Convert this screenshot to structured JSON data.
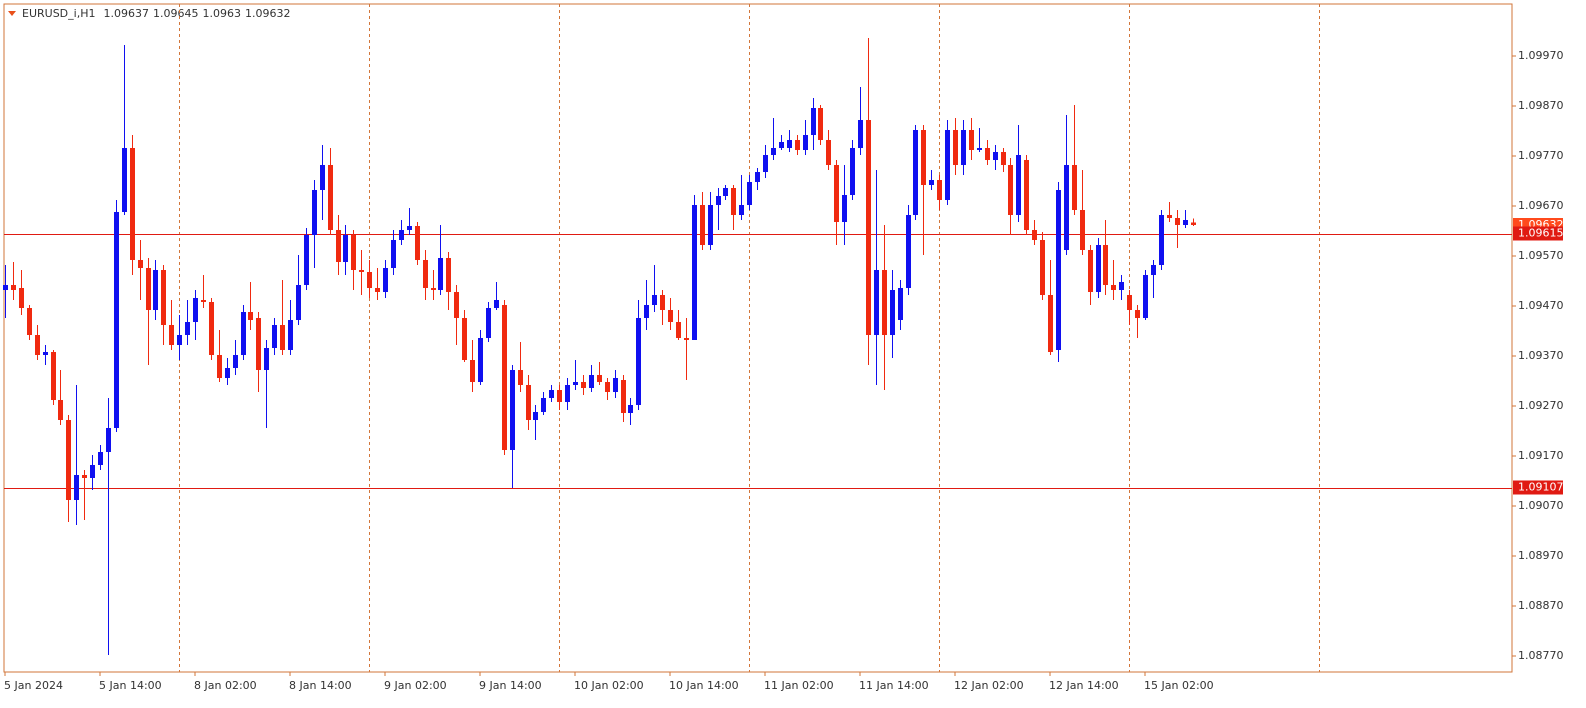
{
  "chart_data": {
    "type": "candlestick",
    "title": "EURUSD_i,H1",
    "up_color": "#1010f0",
    "down_color": "#f02a10",
    "grid": true,
    "categories": [
      "5 Jan 2024",
      null,
      null,
      null,
      null,
      null,
      null,
      null,
      null,
      null,
      null,
      null,
      "5 Jan 14:00",
      null,
      null,
      null,
      null,
      null,
      null,
      null,
      null,
      null,
      null,
      null,
      "8 Jan 02:00",
      null,
      null,
      null,
      null,
      null,
      null,
      null,
      null,
      null,
      null,
      null,
      "8 Jan 14:00",
      null,
      null,
      null,
      null,
      null,
      null,
      null,
      null,
      null,
      null,
      null,
      "9 Jan 02:00",
      null,
      null,
      null,
      null,
      null,
      null,
      null,
      null,
      null,
      null,
      null,
      "9 Jan 14:00",
      null,
      null,
      null,
      null,
      null,
      null,
      null,
      null,
      null,
      null,
      null,
      "10 Jan 02:00",
      null,
      null,
      null,
      null,
      null,
      null,
      null,
      null,
      null,
      null,
      null,
      "10 Jan 14:00",
      null,
      null,
      null,
      null,
      null,
      null,
      null,
      null,
      null,
      null,
      null,
      "11 Jan 02:00",
      null,
      null,
      null,
      null,
      null,
      null,
      null,
      null,
      null,
      null,
      null,
      "11 Jan 14:00",
      null,
      null,
      null,
      null,
      null,
      null,
      null,
      null,
      null,
      null,
      null,
      "12 Jan 02:00",
      null,
      null,
      null,
      null,
      null,
      null,
      null,
      null,
      null,
      null,
      null,
      "12 Jan 14:00",
      null,
      null,
      null,
      null,
      null,
      null,
      null,
      null,
      null,
      null,
      null,
      "15 Jan 02:00",
      null,
      null,
      null,
      null,
      null,
      null
    ],
    "open": [
      1.09502,
      1.09512,
      1.09506,
      1.09466,
      1.09412,
      1.09372,
      1.09378,
      1.09282,
      1.09242,
      1.09082,
      1.09132,
      1.09126,
      1.09152,
      1.09178,
      1.09226,
      1.09658,
      1.09786,
      1.09562,
      1.09546,
      1.09462,
      1.09542,
      1.09432,
      1.09392,
      1.09412,
      1.09438,
      1.09482,
      1.09478,
      1.09372,
      1.09326,
      1.09346,
      1.09372,
      1.09458,
      1.09446,
      1.09342,
      1.09386,
      1.09432,
      1.09382,
      1.09442,
      1.09512,
      1.09612,
      1.09702,
      1.09752,
      1.09622,
      1.09558,
      1.09612,
      1.09542,
      1.09538,
      1.09506,
      1.09498,
      1.09546,
      1.09602,
      1.09622,
      1.0963,
      1.09562,
      1.09506,
      1.09502,
      1.09566,
      1.09498,
      1.09446,
      1.09362,
      1.09318,
      1.09406,
      1.09466,
      1.09472,
      1.09182,
      1.09342,
      1.09312,
      1.09242,
      1.09258,
      1.09286,
      1.09302,
      1.09278,
      1.09312,
      1.09318,
      1.09306,
      1.09332,
      1.09318,
      1.09298,
      1.09322,
      1.09256,
      1.09272,
      1.09446,
      1.09472,
      1.09492,
      1.09462,
      1.09438,
      1.09406,
      1.09402,
      1.09672,
      1.09592,
      1.09672,
      1.0969,
      1.09706,
      1.09652,
      1.09672,
      1.09718,
      1.09738,
      1.09772,
      1.09786,
      1.09786,
      1.09802,
      1.09782,
      1.09812,
      1.09866,
      1.09802,
      1.09752,
      1.09638,
      1.09692,
      1.09786,
      1.09842,
      1.09412,
      1.09542,
      1.09412,
      1.09442,
      1.09506,
      1.09652,
      1.09822,
      1.09712,
      1.09722,
      1.09682,
      1.09822,
      1.09752,
      1.09822,
      1.09782,
      1.09786,
      1.09762,
      1.09778,
      1.09752,
      1.09652,
      1.09762,
      1.09622,
      1.09602,
      1.09492,
      1.09382,
      1.09582,
      1.09752,
      1.09662,
      1.09582,
      1.09498,
      1.09592,
      1.09512,
      1.09502,
      1.09492,
      1.09462,
      1.09446,
      1.09532,
      1.09552,
      1.09652,
      1.09646,
      1.09632,
      1.09637
    ],
    "high": [
      1.09552,
      1.09558,
      1.09542,
      1.09472,
      1.09432,
      1.09392,
      1.09382,
      1.09342,
      1.09252,
      1.09312,
      1.09142,
      1.09172,
      1.09192,
      1.09286,
      1.09682,
      1.09992,
      1.09812,
      1.09602,
      1.09566,
      1.09562,
      1.09552,
      1.09482,
      1.09452,
      1.09482,
      1.09502,
      1.09532,
      1.09486,
      1.09422,
      1.09366,
      1.09402,
      1.09472,
      1.09518,
      1.09458,
      1.09402,
      1.09446,
      1.09522,
      1.09482,
      1.09572,
      1.09626,
      1.09722,
      1.09792,
      1.09786,
      1.09652,
      1.09632,
      1.09622,
      1.09582,
      1.09562,
      1.09546,
      1.09562,
      1.09622,
      1.09642,
      1.09666,
      1.09638,
      1.09582,
      1.09542,
      1.09632,
      1.09578,
      1.09512,
      1.09462,
      1.09402,
      1.09422,
      1.09478,
      1.09518,
      1.09482,
      1.09352,
      1.09398,
      1.09332,
      1.09272,
      1.09298,
      1.09312,
      1.09312,
      1.09326,
      1.09362,
      1.09332,
      1.09352,
      1.09358,
      1.09326,
      1.09342,
      1.09332,
      1.09286,
      1.09482,
      1.09522,
      1.09552,
      1.09502,
      1.09486,
      1.09462,
      1.09446,
      1.09692,
      1.09698,
      1.09698,
      1.09706,
      1.09712,
      1.09712,
      1.09732,
      1.09732,
      1.09746,
      1.09792,
      1.09846,
      1.09812,
      1.09822,
      1.09812,
      1.09842,
      1.09886,
      1.09872,
      1.09822,
      1.09762,
      1.09752,
      1.09802,
      1.09908,
      1.10006,
      1.09742,
      1.09632,
      1.09542,
      1.09522,
      1.09672,
      1.09832,
      1.09832,
      1.09742,
      1.09732,
      1.09842,
      1.09846,
      1.09842,
      1.09846,
      1.09826,
      1.09802,
      1.09792,
      1.09786,
      1.09766,
      1.09832,
      1.09772,
      1.09642,
      1.09618,
      1.09562,
      1.09718,
      1.09852,
      1.09872,
      1.09742,
      1.09592,
      1.09606,
      1.09642,
      1.09562,
      1.09532,
      1.09502,
      1.09472,
      1.09542,
      1.09562,
      1.09662,
      1.09678,
      1.09662,
      1.09662,
      1.09645
    ],
    "low": [
      1.09446,
      1.09482,
      1.09452,
      1.09402,
      1.09362,
      1.09352,
      1.09272,
      1.09232,
      1.09038,
      1.09032,
      1.09042,
      1.09102,
      1.09142,
      1.08772,
      1.09218,
      1.09652,
      1.09532,
      1.09482,
      1.09352,
      1.09442,
      1.09392,
      1.09382,
      1.09362,
      1.09392,
      1.09402,
      1.09466,
      1.09362,
      1.09318,
      1.09312,
      1.09332,
      1.09362,
      1.09422,
      1.09298,
      1.09226,
      1.09372,
      1.09372,
      1.09372,
      1.09432,
      1.09502,
      1.09546,
      1.09642,
      1.09612,
      1.09532,
      1.09532,
      1.09502,
      1.09492,
      1.09486,
      1.09482,
      1.09486,
      1.09532,
      1.09592,
      1.09612,
      1.09552,
      1.09482,
      1.09482,
      1.09492,
      1.09462,
      1.09392,
      1.09358,
      1.09298,
      1.09312,
      1.09398,
      1.09462,
      1.09172,
      1.09106,
      1.09298,
      1.09222,
      1.09202,
      1.09252,
      1.09278,
      1.09262,
      1.09262,
      1.09302,
      1.09292,
      1.09298,
      1.09312,
      1.09282,
      1.09286,
      1.09238,
      1.09232,
      1.09262,
      1.09422,
      1.09458,
      1.09432,
      1.09422,
      1.09402,
      1.09322,
      1.09402,
      1.09582,
      1.09582,
      1.09622,
      1.09682,
      1.09622,
      1.09642,
      1.09662,
      1.09702,
      1.09726,
      1.09762,
      1.09782,
      1.09778,
      1.09772,
      1.09772,
      1.09782,
      1.09792,
      1.09742,
      1.09592,
      1.09592,
      1.09682,
      1.09772,
      1.09352,
      1.09312,
      1.09302,
      1.09366,
      1.09422,
      1.09492,
      1.09642,
      1.09572,
      1.09702,
      1.09662,
      1.09672,
      1.09732,
      1.09732,
      1.09762,
      1.09778,
      1.09752,
      1.09742,
      1.09738,
      1.09612,
      1.09638,
      1.09612,
      1.09592,
      1.09482,
      1.09372,
      1.09358,
      1.09572,
      1.09652,
      1.09572,
      1.09472,
      1.09486,
      1.09492,
      1.09482,
      1.09482,
      1.09432,
      1.09406,
      1.09442,
      1.09486,
      1.09542,
      1.09638,
      1.09586,
      1.09626,
      1.0963
    ],
    "close": [
      1.09512,
      1.09502,
      1.09466,
      1.09412,
      1.09372,
      1.09378,
      1.09282,
      1.09242,
      1.09082,
      1.09132,
      1.09126,
      1.09152,
      1.09178,
      1.09226,
      1.09658,
      1.09786,
      1.09562,
      1.09546,
      1.09462,
      1.09542,
      1.09432,
      1.09392,
      1.09412,
      1.09438,
      1.09486,
      1.09478,
      1.09372,
      1.09326,
      1.09346,
      1.09372,
      1.09458,
      1.09442,
      1.09342,
      1.09386,
      1.09432,
      1.09382,
      1.09442,
      1.09512,
      1.09612,
      1.09702,
      1.09752,
      1.09622,
      1.09558,
      1.09612,
      1.09542,
      1.09538,
      1.09506,
      1.09498,
      1.09546,
      1.09602,
      1.09622,
      1.0963,
      1.09562,
      1.09506,
      1.09502,
      1.09566,
      1.09498,
      1.09446,
      1.09362,
      1.09318,
      1.09406,
      1.09466,
      1.09482,
      1.09182,
      1.09342,
      1.09312,
      1.09242,
      1.09258,
      1.09286,
      1.09302,
      1.09278,
      1.09312,
      1.09318,
      1.09306,
      1.09332,
      1.09318,
      1.09298,
      1.09326,
      1.09256,
      1.09272,
      1.09446,
      1.09472,
      1.09492,
      1.09462,
      1.09438,
      1.09406,
      1.09402,
      1.09672,
      1.09592,
      1.09672,
      1.0969,
      1.09706,
      1.09652,
      1.09672,
      1.09718,
      1.09738,
      1.09772,
      1.09786,
      1.09798,
      1.09802,
      1.09782,
      1.09812,
      1.09866,
      1.09802,
      1.09752,
      1.09638,
      1.09692,
      1.09786,
      1.09842,
      1.09412,
      1.09542,
      1.09412,
      1.09502,
      1.09506,
      1.09652,
      1.09822,
      1.09712,
      1.09722,
      1.09682,
      1.09822,
      1.09752,
      1.09822,
      1.09782,
      1.09786,
      1.09762,
      1.09778,
      1.09752,
      1.09652,
      1.09772,
      1.09622,
      1.09602,
      1.09492,
      1.09378,
      1.09702,
      1.09752,
      1.09662,
      1.09582,
      1.09498,
      1.09592,
      1.09512,
      1.09502,
      1.09518,
      1.09462,
      1.09446,
      1.09532,
      1.09552,
      1.09652,
      1.09646,
      1.09632,
      1.09642,
      1.09632
    ],
    "ylim": [
      1.08738,
      1.10074
    ],
    "yticks": [
      {
        "value": 1.0997,
        "label": "1.09970"
      },
      {
        "value": 1.0987,
        "label": "1.09870"
      },
      {
        "value": 1.0977,
        "label": "1.09770"
      },
      {
        "value": 1.0967,
        "label": "1.09670"
      },
      {
        "value": 1.0957,
        "label": "1.09570"
      },
      {
        "value": 1.0947,
        "label": "1.09470"
      },
      {
        "value": 1.0937,
        "label": "1.09370"
      },
      {
        "value": 1.0927,
        "label": "1.09270"
      },
      {
        "value": 1.0917,
        "label": "1.09170"
      },
      {
        "value": 1.0907,
        "label": "1.09070"
      },
      {
        "value": 1.0897,
        "label": "1.08970"
      },
      {
        "value": 1.0887,
        "label": "1.08870"
      },
      {
        "value": 1.0877,
        "label": "1.08770"
      }
    ],
    "hlines": [
      {
        "value": 1.09615,
        "color": "#e01a12"
      },
      {
        "value": 1.09107,
        "color": "#e01a12"
      }
    ],
    "bid_color": "#ff4a1c"
  }
}
